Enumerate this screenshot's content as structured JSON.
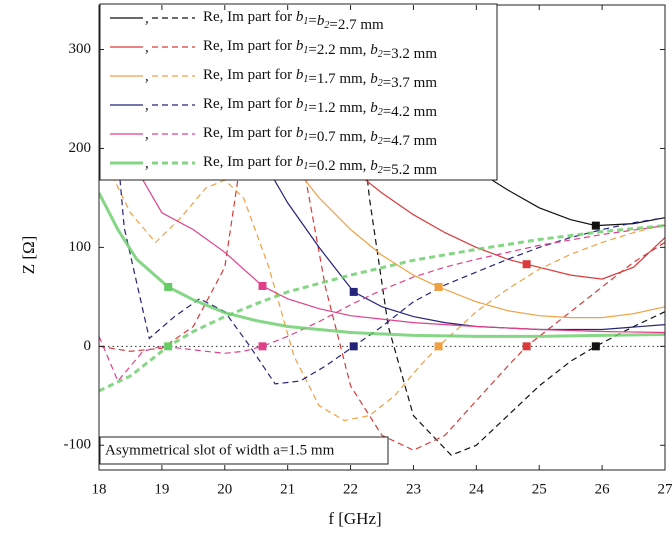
{
  "chart_data": {
    "type": "line",
    "xlabel": "f [GHz]",
    "ylabel": "Z [Ω]",
    "annotation": "Asymmetrical slot of width a=1.5 mm",
    "xlim": [
      18,
      27
    ],
    "xticks": [
      18,
      19,
      20,
      21,
      22,
      23,
      24,
      25,
      26,
      27
    ],
    "ylim": [
      -125,
      345
    ],
    "yticks": [
      -100,
      0,
      100,
      200,
      300
    ],
    "reference_line": 0,
    "series": [
      {
        "name": "Re, Im part for b1=b2=2.7 mm",
        "color": "#111111",
        "width": 1.2,
        "re": {
          "x": [
            21.8,
            22.2,
            22.6,
            23,
            23.5,
            24,
            24.5,
            25,
            25.5,
            25.9,
            26.5,
            27
          ],
          "values": [
            360,
            310,
            270,
            240,
            205,
            178,
            158,
            140,
            128,
            122,
            124,
            130
          ]
        },
        "im": {
          "x": [
            21.95,
            22.0,
            22.3,
            22.6,
            23,
            23.6,
            24,
            24.5,
            25,
            25.5,
            25.9,
            26.5,
            27
          ],
          "values": [
            400,
            330,
            150,
            20,
            -70,
            -110,
            -100,
            -70,
            -40,
            -15,
            0,
            20,
            35
          ]
        },
        "marker": {
          "x": 25.9,
          "re": 122,
          "im": 0
        }
      },
      {
        "name": "Re, Im part for b1=2.2 mm, b2=3.2 mm",
        "color": "#d93a3a",
        "width": 1.2,
        "re": {
          "x": [
            19.5,
            20,
            20.5,
            21,
            21.5,
            22,
            22.5,
            23,
            23.5,
            24,
            24.5,
            24.8,
            25.5,
            26,
            26.5,
            27
          ],
          "values": [
            380,
            320,
            280,
            245,
            210,
            180,
            155,
            133,
            115,
            100,
            88,
            83,
            72,
            68,
            80,
            110
          ]
        },
        "im": {
          "x": [
            18,
            18.5,
            19,
            19.5,
            20,
            20.4,
            20.6,
            20.8,
            21.2,
            21.6,
            22,
            22.5,
            23,
            23.5,
            24,
            24.5,
            24.8,
            25.5,
            26,
            26.5,
            27
          ],
          "values": [
            0,
            -5,
            -2,
            20,
            80,
            250,
            null,
            340,
            200,
            60,
            -40,
            -90,
            -105,
            -90,
            -55,
            -20,
            0,
            35,
            60,
            85,
            105
          ]
        },
        "marker": {
          "x": 24.8,
          "re": 83,
          "im": 0
        }
      },
      {
        "name": "Re, Im part for b1=1.7 mm, b2=3.7 mm",
        "color": "#f0a040",
        "width": 1.2,
        "re": {
          "x": [
            19,
            19.5,
            20,
            20.5,
            21,
            21.5,
            22,
            22.5,
            23,
            23.4,
            24,
            24.5,
            25,
            25.5,
            26,
            26.5,
            27
          ],
          "values": [
            400,
            340,
            290,
            240,
            190,
            150,
            118,
            92,
            72,
            60,
            45,
            36,
            31,
            29,
            29,
            33,
            40
          ]
        },
        "im": {
          "x": [
            18,
            18.5,
            18.9,
            19.3,
            19.7,
            20,
            20.3,
            20.7,
            21.1,
            21.5,
            21.9,
            22.3,
            22.7,
            23.1,
            23.4,
            24,
            24.5,
            25,
            25.5,
            26,
            26.5,
            27
          ],
          "values": [
            200,
            135,
            105,
            130,
            160,
            168,
            150,
            80,
            -10,
            -60,
            -75,
            -70,
            -50,
            -20,
            0,
            35,
            58,
            78,
            93,
            105,
            115,
            123
          ]
        },
        "marker": {
          "x": 23.4,
          "re": 60,
          "im": 0
        }
      },
      {
        "name": "Re, Im part for b1=1.2 mm, b2=4.2 mm",
        "color": "#24247a",
        "width": 1.2,
        "re": {
          "x": [
            19.5,
            20,
            20.5,
            21,
            21.5,
            22.05,
            22.5,
            23,
            23.5,
            24,
            25,
            26,
            27
          ],
          "values": [
            330,
            260,
            200,
            145,
            100,
            55,
            40,
            30,
            24,
            20,
            17,
            17,
            22
          ]
        },
        "im": {
          "x": [
            18.1,
            18.4,
            18.8,
            19.2,
            19.6,
            20,
            20.4,
            20.8,
            21.2,
            21.6,
            22.05,
            22.5,
            23,
            23.5,
            24,
            24.5,
            25,
            25.5,
            26,
            26.5,
            27
          ],
          "values": [
            340,
            120,
            8,
            30,
            48,
            35,
            0,
            -38,
            -35,
            -20,
            0,
            20,
            45,
            62,
            75,
            88,
            100,
            110,
            118,
            125,
            130
          ]
        },
        "marker": {
          "x": 22.05,
          "re": 55,
          "im": 0
        }
      },
      {
        "name": "Re, Im part for b1=0.7 mm, b2=4.7 mm",
        "color": "#e0408a",
        "width": 1.2,
        "re": {
          "x": [
            18,
            18.5,
            19,
            19.5,
            20,
            20.6,
            21,
            21.5,
            22,
            23,
            24,
            25,
            26,
            27
          ],
          "values": [
            250,
            190,
            135,
            118,
            95,
            61,
            48,
            38,
            31,
            24,
            20,
            17,
            15,
            14
          ]
        },
        "im": {
          "x": [
            18,
            18.3,
            18.7,
            19,
            19.3,
            19.7,
            20,
            20.3,
            20.6,
            21,
            21.5,
            22,
            22.5,
            23,
            23.5,
            24,
            25,
            26,
            27
          ],
          "values": [
            10,
            -35,
            -5,
            0,
            -2,
            -5,
            -7,
            -5,
            0,
            10,
            25,
            42,
            57,
            70,
            80,
            88,
            102,
            113,
            122
          ]
        },
        "marker": {
          "x": 20.6,
          "re": 61,
          "im": 0
        }
      },
      {
        "name": "Re, Im part for  b1=0.2 mm, b2=5.2 mm",
        "color": "#66cc66",
        "width": 3,
        "re": {
          "x": [
            18,
            18.3,
            18.6,
            19.1,
            19.5,
            20,
            20.5,
            21,
            22,
            23,
            24,
            25,
            26,
            27
          ],
          "values": [
            155,
            118,
            88,
            60,
            47,
            34,
            26,
            20,
            14,
            11,
            10,
            10,
            11,
            12
          ]
        },
        "im": {
          "x": [
            18,
            18.5,
            19.1,
            19.5,
            20,
            20.5,
            21,
            22,
            23,
            24,
            25,
            26,
            27
          ],
          "values": [
            -45,
            -30,
            0,
            15,
            30,
            43,
            55,
            72,
            87,
            98,
            108,
            116,
            122
          ]
        },
        "marker": {
          "x": 19.1,
          "re": 60,
          "im": 0
        }
      }
    ]
  }
}
